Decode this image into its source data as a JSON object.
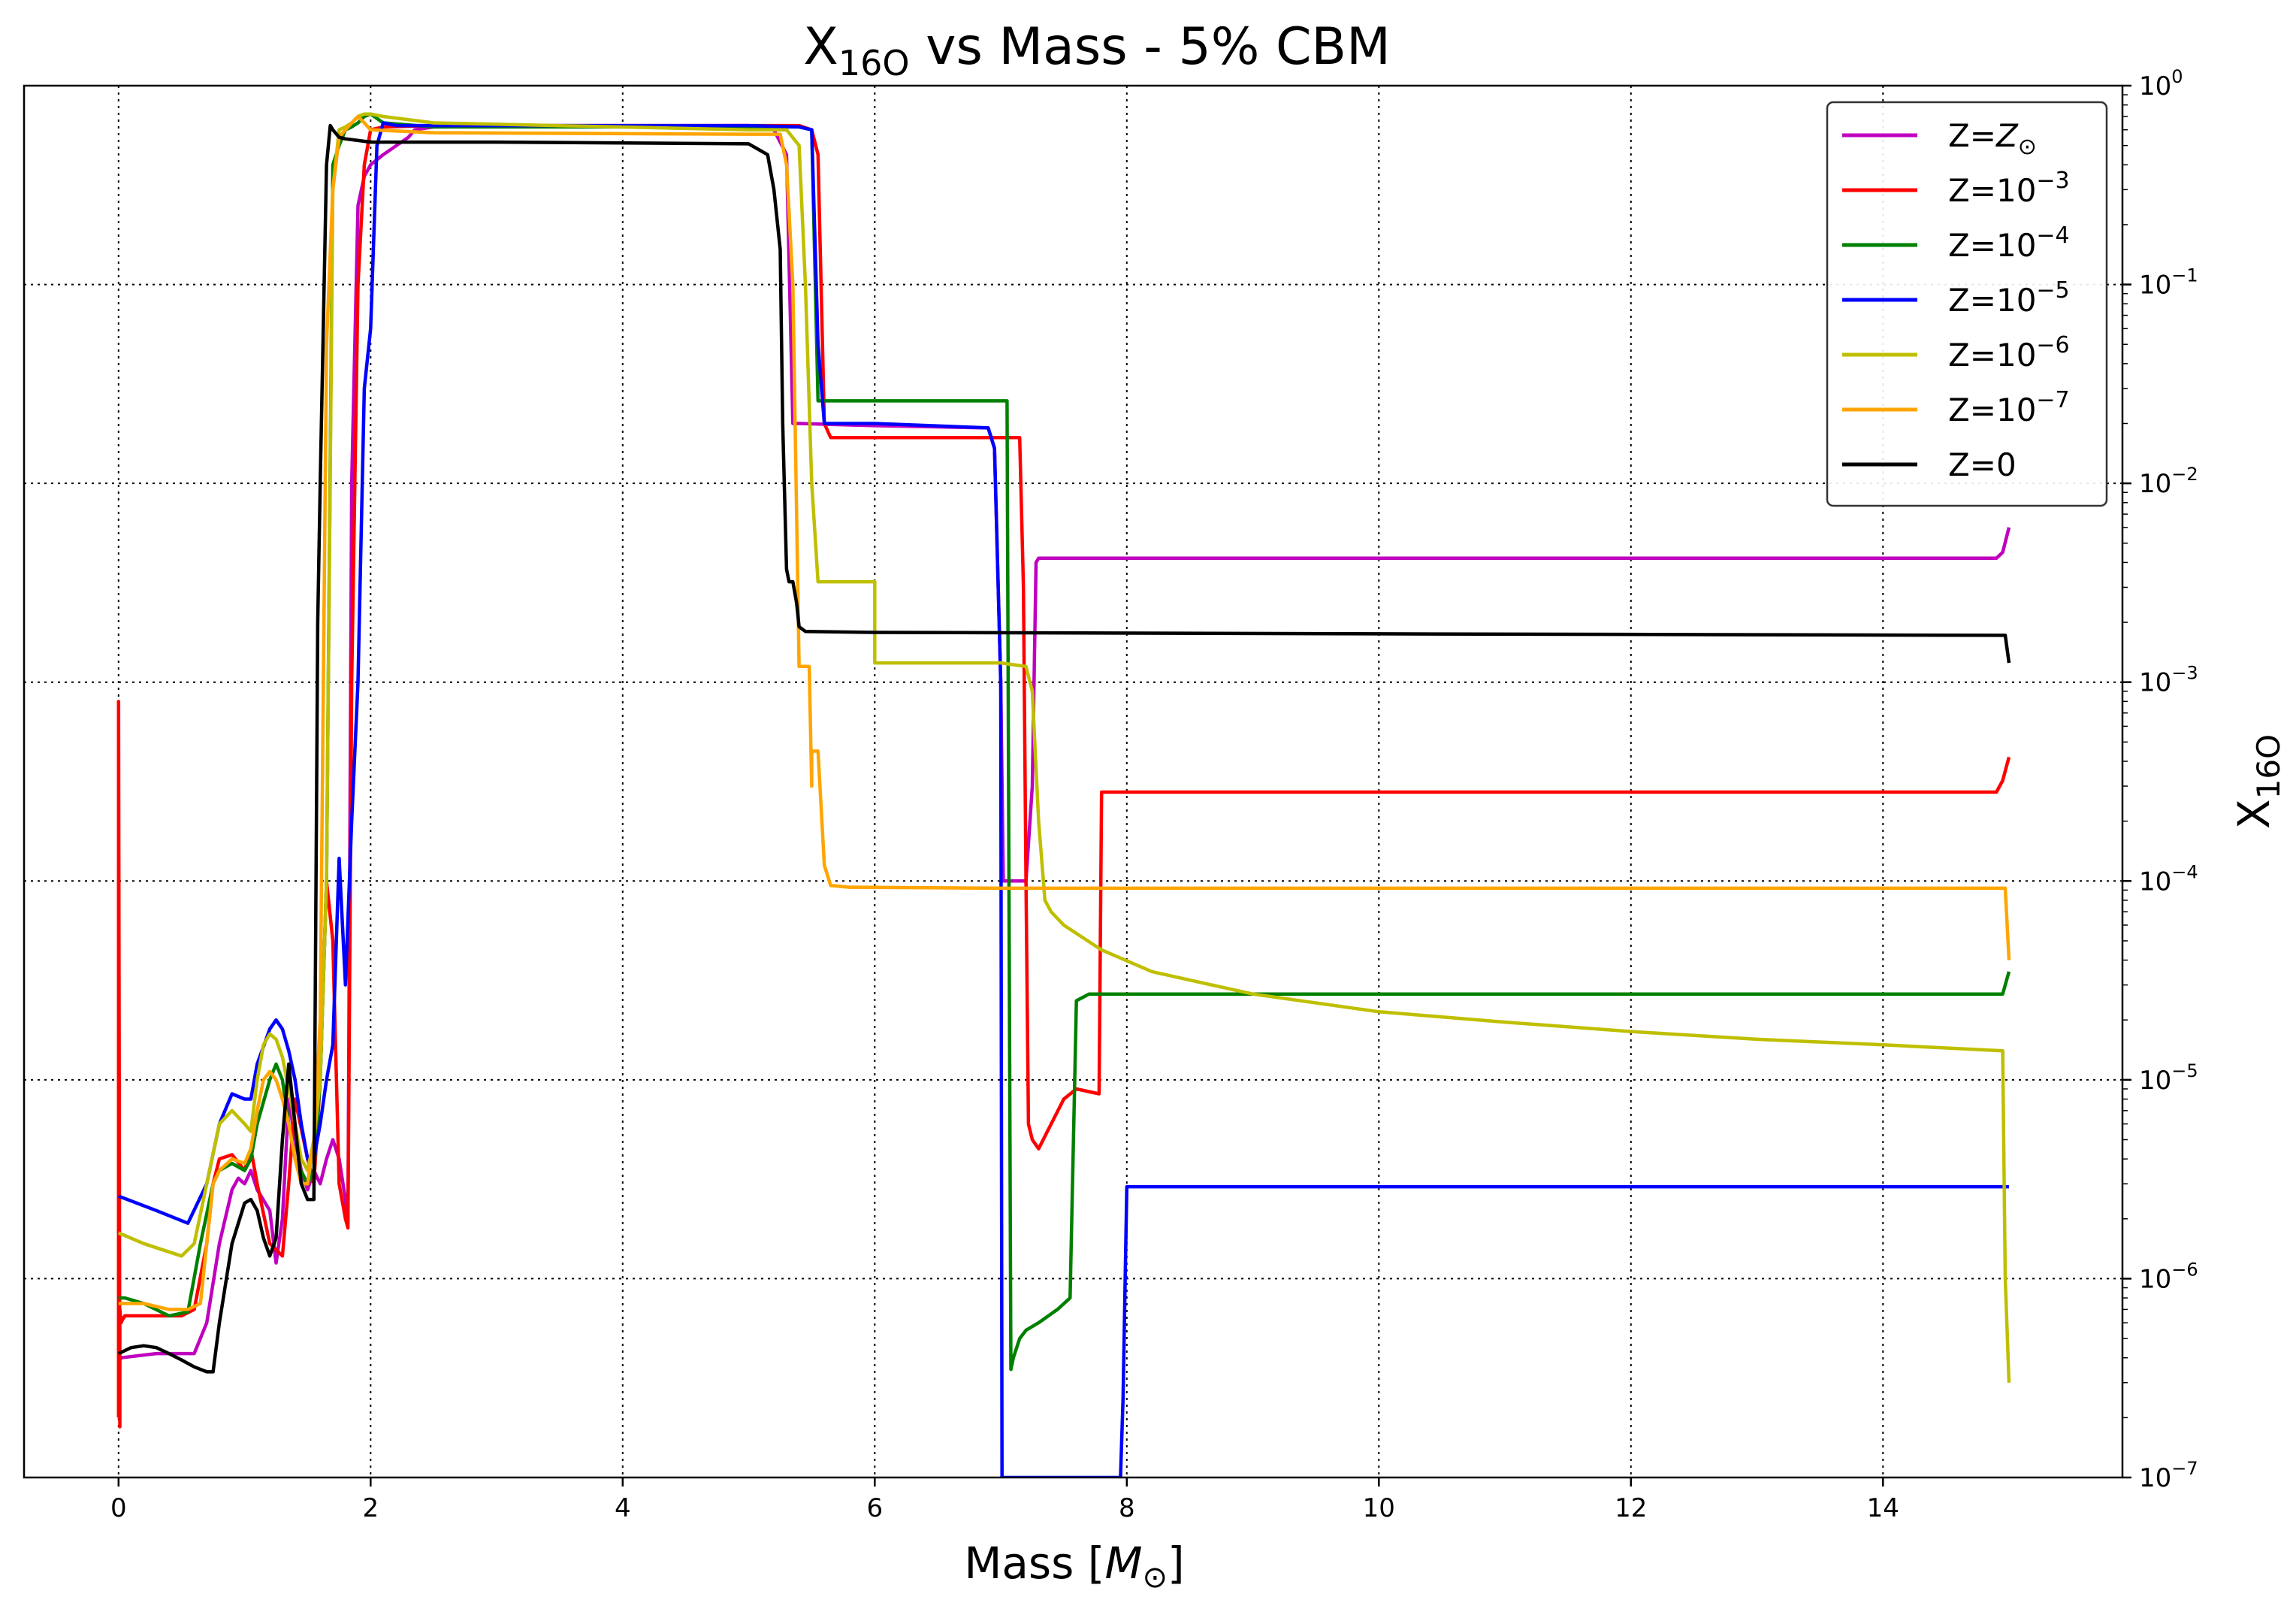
{
  "chart_data": {
    "type": "line",
    "title": {
      "main": "X",
      "sub": "16O",
      "rest": " vs Mass - 5% CBM"
    },
    "xlabel": {
      "main": "Mass [",
      "symbol": "M",
      "sub": "⊙",
      "close": "]"
    },
    "ylabel": {
      "main": "X",
      "sub": "16O"
    },
    "xlim": [
      -0.75,
      15.9
    ],
    "ylim": [
      1e-07,
      1
    ],
    "yscale": "log",
    "x_ticks": [
      0,
      2,
      4,
      6,
      8,
      10,
      12,
      14
    ],
    "y_ticks": [
      {
        "value": 1,
        "base": "10",
        "exp": "0"
      },
      {
        "value": 0.1,
        "base": "10",
        "exp": "−1"
      },
      {
        "value": 0.01,
        "base": "10",
        "exp": "−2"
      },
      {
        "value": 0.001,
        "base": "10",
        "exp": "−3"
      },
      {
        "value": 0.0001,
        "base": "10",
        "exp": "−4"
      },
      {
        "value": 1e-05,
        "base": "10",
        "exp": "−5"
      },
      {
        "value": 1e-06,
        "base": "10",
        "exp": "−6"
      },
      {
        "value": 1e-07,
        "base": "10",
        "exp": "−7"
      }
    ],
    "grid": true,
    "legend_position": "top-right",
    "series": [
      {
        "name": "Z=Z⊙",
        "legend": {
          "prefix": "Z=",
          "main": "Z",
          "sub": "⊙",
          "exp": ""
        },
        "color": "#bf00bf",
        "x": [
          0,
          0.02,
          0.3,
          0.6,
          0.7,
          0.8,
          0.9,
          0.95,
          1.0,
          1.05,
          1.1,
          1.2,
          1.25,
          1.3,
          1.35,
          1.4,
          1.45,
          1.5,
          1.55,
          1.6,
          1.65,
          1.7,
          1.75,
          1.8,
          1.82,
          1.85,
          1.9,
          1.95,
          2.0,
          2.1,
          2.3,
          2.35,
          2.5,
          5.0,
          5.2,
          5.3,
          5.35,
          5.4,
          6.0,
          6.9,
          6.95,
          7.0,
          7.02,
          7.1,
          7.2,
          7.25,
          7.28,
          7.3,
          10.0,
          14.9,
          14.95,
          15.0
        ],
        "y": [
          3.8e-07,
          4e-07,
          4.2e-07,
          4.2e-07,
          6e-07,
          1.5e-06,
          2.8e-06,
          3.2e-06,
          3e-06,
          3.5e-06,
          2.8e-06,
          2.2e-06,
          1.2e-06,
          2e-06,
          8e-06,
          5e-06,
          3.5e-06,
          2.8e-06,
          3.5e-06,
          3e-06,
          4e-06,
          5e-06,
          4e-06,
          2.5e-06,
          1.9e-06,
          0.01,
          0.25,
          0.35,
          0.4,
          0.45,
          0.55,
          0.6,
          0.62,
          0.63,
          0.6,
          0.45,
          0.02,
          0.02,
          0.0195,
          0.019,
          0.015,
          0.001,
          0.0001,
          0.0001,
          0.0001,
          0.0003,
          0.004,
          0.0042,
          0.0042,
          0.0042,
          0.0045,
          0.006
        ]
      },
      {
        "name": "Z=10^-3",
        "legend": {
          "prefix": "Z=",
          "main": "10",
          "sub": "",
          "exp": "−3"
        },
        "color": "#ff0000",
        "x": [
          0,
          0,
          0.01,
          0.01,
          0.02,
          0.03,
          0.05,
          0.1,
          0.3,
          0.5,
          0.6,
          0.7,
          0.75,
          0.8,
          0.9,
          1.0,
          1.05,
          1.1,
          1.2,
          1.25,
          1.3,
          1.35,
          1.4,
          1.5,
          1.55,
          1.6,
          1.65,
          1.7,
          1.75,
          1.8,
          1.82,
          1.85,
          1.9,
          1.95,
          2.0,
          2.1,
          2.5,
          5.0,
          5.4,
          5.5,
          5.55,
          5.6,
          5.65,
          6.0,
          7.0,
          7.15,
          7.18,
          7.2,
          7.22,
          7.25,
          7.3,
          7.4,
          7.5,
          7.6,
          7.78,
          7.8,
          7.85,
          8.5,
          14.9,
          14.95,
          15.0
        ],
        "y": [
          2e-07,
          0.0008,
          1.8e-07,
          7e-07,
          6e-07,
          6.2e-07,
          6.5e-07,
          6.5e-07,
          6.5e-07,
          6.5e-07,
          7e-07,
          1.5e-06,
          3e-06,
          4e-06,
          4.2e-06,
          3.5e-06,
          4.5e-06,
          3e-06,
          1.5e-06,
          1.4e-06,
          1.3e-06,
          3e-06,
          8e-06,
          4e-06,
          3e-06,
          1e-05,
          0.0001,
          5e-05,
          3e-06,
          2e-06,
          1.8e-06,
          0.001,
          0.1,
          0.4,
          0.6,
          0.62,
          0.63,
          0.63,
          0.63,
          0.6,
          0.45,
          0.02,
          0.017,
          0.017,
          0.017,
          0.017,
          0.003,
          0.0001,
          6e-06,
          5e-06,
          4.5e-06,
          6e-06,
          8e-06,
          9e-06,
          8.5e-06,
          0.00028,
          0.00028,
          0.00028,
          0.00028,
          0.00032,
          0.00042
        ]
      },
      {
        "name": "Z=10^-4",
        "legend": {
          "prefix": "Z=",
          "main": "10",
          "sub": "",
          "exp": "−4"
        },
        "color": "#008000",
        "x": [
          0,
          0.05,
          0.2,
          0.4,
          0.55,
          0.65,
          0.75,
          0.8,
          0.9,
          1.0,
          1.05,
          1.1,
          1.2,
          1.25,
          1.3,
          1.35,
          1.4,
          1.5,
          1.55,
          1.6,
          1.65,
          1.7,
          1.75,
          1.8,
          1.85,
          1.9,
          1.95,
          2.0,
          2.1,
          2.5,
          5.0,
          5.4,
          5.5,
          5.55,
          6.0,
          7.0,
          7.05,
          7.08,
          7.1,
          7.15,
          7.2,
          7.3,
          7.45,
          7.55,
          7.6,
          7.7,
          8.0,
          14.9,
          14.95,
          15.0
        ],
        "y": [
          8e-07,
          8e-07,
          7.5e-07,
          6.5e-07,
          6.8e-07,
          1.5e-06,
          3e-06,
          3.5e-06,
          3.8e-06,
          3.5e-06,
          4e-06,
          6e-06,
          1e-05,
          1.2e-05,
          1e-05,
          6e-06,
          4e-06,
          3e-06,
          3.5e-06,
          1e-05,
          0.0001,
          0.4,
          0.5,
          0.6,
          0.62,
          0.65,
          0.7,
          0.72,
          0.65,
          0.62,
          0.62,
          0.62,
          0.6,
          0.026,
          0.026,
          0.026,
          0.026,
          3.5e-07,
          4e-07,
          5e-07,
          5.5e-07,
          6e-07,
          7e-07,
          8e-07,
          2.5e-05,
          2.7e-05,
          2.7e-05,
          2.7e-05,
          2.7e-05,
          3.5e-05
        ]
      },
      {
        "name": "Z=10^-5",
        "legend": {
          "prefix": "Z=",
          "main": "10",
          "sub": "",
          "exp": "−5"
        },
        "color": "#0000ff",
        "x": [
          0,
          0.3,
          0.55,
          0.7,
          0.8,
          0.9,
          1.0,
          1.05,
          1.1,
          1.2,
          1.25,
          1.3,
          1.35,
          1.4,
          1.45,
          1.5,
          1.55,
          1.6,
          1.65,
          1.7,
          1.75,
          1.8,
          1.85,
          1.9,
          1.95,
          2.0,
          2.05,
          2.1,
          2.2,
          2.5,
          5.0,
          5.4,
          5.5,
          5.55,
          5.6,
          6.0,
          6.9,
          6.95,
          7.0,
          7.01,
          7.02,
          7.95,
          7.97,
          8.0,
          8.1,
          9.0,
          14.9,
          14.95,
          15.0
        ],
        "y": [
          2.6e-06,
          2.2e-06,
          1.9e-06,
          3e-06,
          6e-06,
          8.5e-06,
          8e-06,
          8e-06,
          1.2e-05,
          1.8e-05,
          2e-05,
          1.8e-05,
          1.4e-05,
          1e-05,
          6e-06,
          4e-06,
          4e-06,
          6e-06,
          1e-05,
          1.5e-05,
          0.00013,
          3e-05,
          0.0002,
          0.001,
          0.03,
          0.06,
          0.5,
          0.65,
          0.63,
          0.63,
          0.63,
          0.62,
          0.6,
          0.05,
          0.02,
          0.02,
          0.019,
          0.015,
          0.001,
          1e-07,
          1e-07,
          1e-07,
          2.5e-07,
          2.9e-06,
          2.9e-06,
          2.9e-06,
          2.9e-06,
          2.9e-06,
          2.9e-06
        ]
      },
      {
        "name": "Z=10^-6",
        "legend": {
          "prefix": "Z=",
          "main": "10",
          "sub": "",
          "exp": "−6"
        },
        "color": "#bfbf00",
        "x": [
          0,
          0.2,
          0.5,
          0.6,
          0.7,
          0.8,
          0.9,
          1.0,
          1.05,
          1.1,
          1.15,
          1.2,
          1.25,
          1.3,
          1.35,
          1.4,
          1.45,
          1.5,
          1.55,
          1.6,
          1.65,
          1.7,
          1.75,
          1.8,
          1.85,
          1.9,
          1.95,
          2.0,
          2.1,
          2.5,
          5.0,
          5.3,
          5.4,
          5.45,
          5.5,
          5.55,
          6.0,
          6.0,
          7.0,
          7.2,
          7.25,
          7.3,
          7.35,
          7.4,
          7.5,
          7.8,
          8.2,
          9.0,
          10.0,
          11.0,
          12.0,
          13.0,
          14.0,
          14.95,
          14.97,
          15.0
        ],
        "y": [
          1.7e-06,
          1.5e-06,
          1.3e-06,
          1.5e-06,
          3e-06,
          6e-06,
          7e-06,
          6e-06,
          5.5e-06,
          1e-05,
          1.5e-05,
          1.7e-05,
          1.6e-05,
          1.3e-05,
          9e-06,
          6e-06,
          4e-06,
          3.5e-06,
          5e-06,
          1e-05,
          0.0001,
          0.3,
          0.6,
          0.62,
          0.65,
          0.7,
          0.72,
          0.72,
          0.7,
          0.65,
          0.6,
          0.6,
          0.5,
          0.1,
          0.01,
          0.0032,
          0.0032,
          0.00125,
          0.00125,
          0.0012,
          0.0009,
          0.0002,
          8e-05,
          7e-05,
          6e-05,
          4.5e-05,
          3.5e-05,
          2.7e-05,
          2.2e-05,
          1.95e-05,
          1.75e-05,
          1.6e-05,
          1.5e-05,
          1.4e-05,
          1e-06,
          3e-07
        ]
      },
      {
        "name": "Z=10^-7",
        "legend": {
          "prefix": "Z=",
          "main": "10",
          "sub": "",
          "exp": "−7"
        },
        "color": "#ffa500",
        "x": [
          0,
          0.2,
          0.4,
          0.55,
          0.65,
          0.7,
          0.75,
          0.8,
          0.9,
          1.0,
          1.05,
          1.1,
          1.15,
          1.2,
          1.25,
          1.3,
          1.35,
          1.4,
          1.45,
          1.5,
          1.55,
          1.6,
          1.65,
          1.7,
          1.75,
          1.8,
          1.85,
          1.9,
          1.95,
          2.0,
          2.5,
          5.0,
          5.25,
          5.3,
          5.35,
          5.4,
          5.45,
          5.48,
          5.5,
          5.5,
          5.52,
          5.55,
          5.6,
          5.65,
          5.8,
          7.0,
          10.0,
          14.97,
          15.0
        ],
        "y": [
          7.5e-07,
          7.5e-07,
          7e-07,
          7e-07,
          7.5e-07,
          1.5e-06,
          3e-06,
          3.5e-06,
          4e-06,
          3.8e-06,
          4.5e-06,
          7e-06,
          1e-05,
          1.1e-05,
          1e-05,
          8e-06,
          6e-06,
          4e-06,
          3e-06,
          3e-06,
          5e-06,
          2e-05,
          0.05,
          0.3,
          0.55,
          0.6,
          0.65,
          0.7,
          0.65,
          0.6,
          0.58,
          0.57,
          0.57,
          0.4,
          0.1,
          0.0012,
          0.0012,
          0.0012,
          0.0003,
          0.00045,
          0.00045,
          0.00045,
          0.00012,
          9.5e-05,
          9.3e-05,
          9.2e-05,
          9.2e-05,
          9.2e-05,
          4e-05
        ]
      },
      {
        "name": "Z=0",
        "legend": {
          "prefix": "Z=0",
          "main": "",
          "sub": "",
          "exp": ""
        },
        "color": "#000000",
        "x": [
          0,
          0.1,
          0.2,
          0.3,
          0.4,
          0.5,
          0.6,
          0.7,
          0.75,
          0.8,
          0.9,
          1.0,
          1.05,
          1.1,
          1.15,
          1.2,
          1.25,
          1.3,
          1.35,
          1.4,
          1.45,
          1.5,
          1.55,
          1.58,
          1.6,
          1.65,
          1.68,
          1.7,
          1.75,
          1.8,
          1.9,
          2.0,
          3.0,
          5.0,
          5.15,
          5.2,
          5.25,
          5.27,
          5.3,
          5.32,
          5.35,
          5.38,
          5.4,
          5.45,
          6.0,
          10.0,
          14.97,
          15.0
        ],
        "y": [
          4.2e-07,
          4.5e-07,
          4.6e-07,
          4.5e-07,
          4.2e-07,
          3.9e-07,
          3.6e-07,
          3.4e-07,
          3.4e-07,
          6e-07,
          1.5e-06,
          2.4e-06,
          2.5e-06,
          2.2e-06,
          1.6e-06,
          1.3e-06,
          1.6e-06,
          5e-06,
          1.2e-05,
          6e-06,
          3e-06,
          2.5e-06,
          2.5e-06,
          0.002,
          0.01,
          0.4,
          0.63,
          0.6,
          0.55,
          0.54,
          0.53,
          0.52,
          0.52,
          0.51,
          0.45,
          0.3,
          0.15,
          0.02,
          0.0037,
          0.0032,
          0.0032,
          0.0025,
          0.0019,
          0.0018,
          0.00178,
          0.00175,
          0.00172,
          0.00125
        ]
      }
    ]
  }
}
